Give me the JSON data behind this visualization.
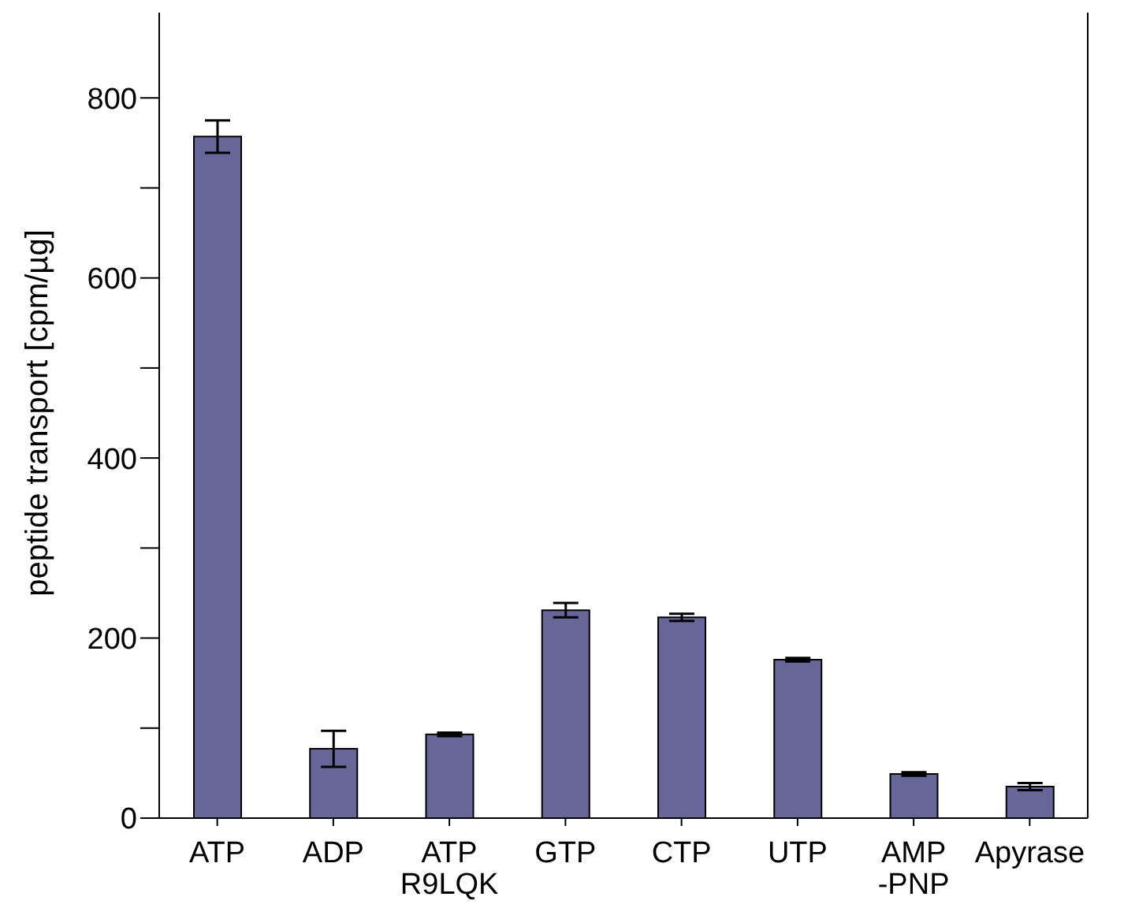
{
  "chart_data": {
    "type": "bar",
    "ylabel": "peptide transport [cpm/µg]",
    "categories": [
      "ATP",
      "ADP",
      "ATP\nR9LQK",
      "GTP",
      "CTP",
      "UTP",
      "AMP\n-PNP",
      "Apyrase"
    ],
    "values": [
      757,
      77,
      93,
      231,
      223,
      176,
      49,
      35
    ],
    "errors": [
      18,
      20,
      2,
      8,
      4,
      2,
      2,
      4
    ],
    "color": "#666699",
    "ylim": [
      0,
      900
    ],
    "yticks": [
      0,
      {
        "value": 100,
        "label": null
      },
      200,
      {
        "value": 300,
        "label": null
      },
      400,
      {
        "value": 500,
        "label": null
      },
      600,
      {
        "value": 700,
        "label": null
      },
      800
    ],
    "grid": false
  }
}
